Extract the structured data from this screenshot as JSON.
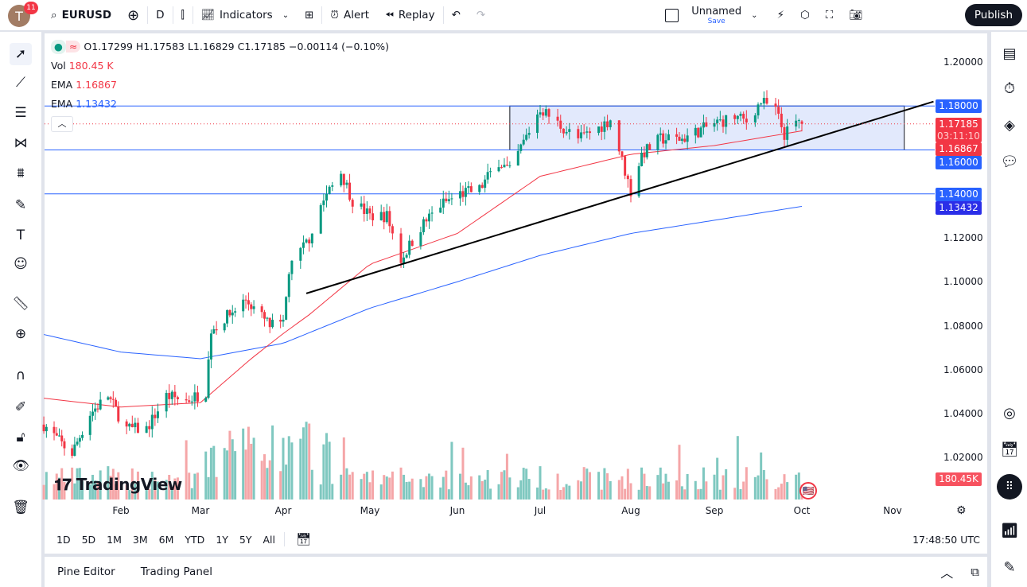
{
  "topbar": {
    "avatar_letter": "T",
    "notifications": "11",
    "symbol": "EURUSD",
    "interval": "D",
    "indicators": "Indicators",
    "alert": "Alert",
    "replay": "Replay",
    "layout_name": "Unnamed",
    "save": "Save",
    "publish": "Publish"
  },
  "legend": {
    "ohlc": "O1.17299 H1.17583 L1.16829 C1.17185 −0.00114 (−0.10%)",
    "vol_label": "Vol",
    "vol_value": "180.45 K",
    "ema1_label": "EMA",
    "ema1_value": "1.16867",
    "ema2_label": "EMA",
    "ema2_value": "1.13432"
  },
  "price_labels": {
    "r118": "1.18000",
    "last": "1.17185",
    "countdown": "03:11:10",
    "ema50": "1.16867",
    "r116": "1.16000",
    "r114": "1.14000",
    "ema200": "1.13432",
    "vol": "180.45K"
  },
  "colors": {
    "up": "#089981",
    "down": "#f23645",
    "ema50": "#f23645",
    "ema200": "#2962ff",
    "hline": "#2962ff",
    "box_fill": "#dbe3fb"
  },
  "logo": "TradingView",
  "bottom": {
    "ranges": [
      "1D",
      "5D",
      "1M",
      "3M",
      "6M",
      "YTD",
      "1Y",
      "5Y",
      "All"
    ],
    "clock": "17:48:50 UTC",
    "pine_editor": "Pine Editor",
    "trading_panel": "Trading Panel"
  },
  "chart_data": {
    "type": "candlestick",
    "symbol": "EURUSD",
    "interval": "D",
    "y_ticks": [
      "1.20000",
      "1.12000",
      "1.10000",
      "1.08000",
      "1.06000",
      "1.04000",
      "1.02000"
    ],
    "x_ticks": [
      "Feb",
      "Mar",
      "Apr",
      "May",
      "Jun",
      "Jul",
      "Aug",
      "Sep",
      "Oct",
      "Nov"
    ],
    "ylim": [
      1.0,
      1.2
    ],
    "close_path": [
      [
        "2025-01-02",
        1.035
      ],
      [
        "2025-01-10",
        1.025
      ],
      [
        "2025-01-13",
        1.022
      ],
      [
        "2025-01-20",
        1.04
      ],
      [
        "2025-01-27",
        1.048
      ],
      [
        "2025-02-03",
        1.033
      ],
      [
        "2025-02-10",
        1.033
      ],
      [
        "2025-02-17",
        1.048
      ],
      [
        "2025-02-24",
        1.046
      ],
      [
        "2025-03-03",
        1.05
      ],
      [
        "2025-03-05",
        1.078
      ],
      [
        "2025-03-10",
        1.083
      ],
      [
        "2025-03-18",
        1.092
      ],
      [
        "2025-03-27",
        1.08
      ],
      [
        "2025-04-01",
        1.08
      ],
      [
        "2025-04-03",
        1.105
      ],
      [
        "2025-04-10",
        1.12
      ],
      [
        "2025-04-14",
        1.135
      ],
      [
        "2025-04-21",
        1.15
      ],
      [
        "2025-04-25",
        1.137
      ],
      [
        "2025-05-01",
        1.13
      ],
      [
        "2025-05-07",
        1.13
      ],
      [
        "2025-05-12",
        1.11
      ],
      [
        "2025-05-19",
        1.125
      ],
      [
        "2025-05-26",
        1.135
      ],
      [
        "2025-06-02",
        1.14
      ],
      [
        "2025-06-09",
        1.142
      ],
      [
        "2025-06-16",
        1.155
      ],
      [
        "2025-06-20",
        1.15
      ],
      [
        "2025-06-24",
        1.161
      ],
      [
        "2025-07-01",
        1.179
      ],
      [
        "2025-07-07",
        1.172
      ],
      [
        "2025-07-14",
        1.165
      ],
      [
        "2025-07-21",
        1.17
      ],
      [
        "2025-07-25",
        1.174
      ],
      [
        "2025-07-28",
        1.16
      ],
      [
        "2025-08-01",
        1.141
      ],
      [
        "2025-08-05",
        1.158
      ],
      [
        "2025-08-12",
        1.165
      ],
      [
        "2025-08-20",
        1.165
      ],
      [
        "2025-08-25",
        1.168
      ],
      [
        "2025-09-01",
        1.172
      ],
      [
        "2025-09-08",
        1.175
      ],
      [
        "2025-09-12",
        1.173
      ],
      [
        "2025-09-17",
        1.182
      ],
      [
        "2025-09-22",
        1.178
      ],
      [
        "2025-09-25",
        1.167
      ],
      [
        "2025-09-30",
        1.173
      ],
      [
        "2025-10-01",
        1.17185
      ]
    ],
    "ema50_path": [
      [
        "2025-01-02",
        1.047
      ],
      [
        "2025-02-01",
        1.043
      ],
      [
        "2025-03-01",
        1.045
      ],
      [
        "2025-03-20",
        1.065
      ],
      [
        "2025-04-10",
        1.085
      ],
      [
        "2025-05-01",
        1.108
      ],
      [
        "2025-06-01",
        1.122
      ],
      [
        "2025-07-01",
        1.148
      ],
      [
        "2025-08-01",
        1.158
      ],
      [
        "2025-09-01",
        1.162
      ],
      [
        "2025-10-01",
        1.16867
      ]
    ],
    "ema200_path": [
      [
        "2025-01-02",
        1.076
      ],
      [
        "2025-02-01",
        1.068
      ],
      [
        "2025-03-01",
        1.065
      ],
      [
        "2025-04-01",
        1.072
      ],
      [
        "2025-05-01",
        1.088
      ],
      [
        "2025-06-01",
        1.1
      ],
      [
        "2025-07-01",
        1.112
      ],
      [
        "2025-08-01",
        1.122
      ],
      [
        "2025-09-01",
        1.128
      ],
      [
        "2025-10-01",
        1.13432
      ]
    ],
    "horizontal_levels": [
      1.18,
      1.16,
      1.14
    ],
    "range_box": {
      "from": "2025-06-20",
      "to": "2025-11-05",
      "low": 1.16,
      "high": 1.18
    },
    "trendline": {
      "from": [
        "2025-04-09",
        1.0947
      ],
      "to": [
        "2025-11-15",
        1.182
      ]
    }
  }
}
